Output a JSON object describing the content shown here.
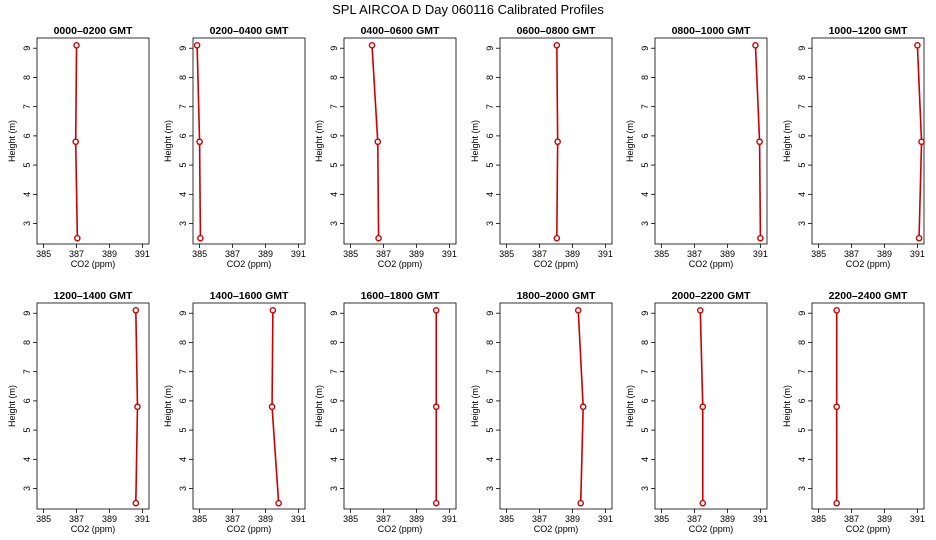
{
  "title": "SPL AIRCOA D  Day 060116  Calibrated Profiles",
  "chart_data": {
    "type": "line",
    "xlabel": "CO2 (ppm)",
    "ylabel": "Height (m)",
    "xlim": [
      384.6,
      391.4
    ],
    "ylim": [
      2.3,
      9.35
    ],
    "xticks": [
      385,
      387,
      389,
      391
    ],
    "yticks": [
      3,
      4,
      5,
      6,
      7,
      8,
      9
    ],
    "series_color": "#cc0000",
    "panels": [
      {
        "title": "0000–0200 GMT",
        "points": [
          {
            "x": 387.0,
            "y": 9.1
          },
          {
            "x": 386.95,
            "y": 5.8
          },
          {
            "x": 387.05,
            "y": 2.5
          }
        ]
      },
      {
        "title": "0200–0400 GMT",
        "points": [
          {
            "x": 384.85,
            "y": 9.1
          },
          {
            "x": 385.0,
            "y": 5.8
          },
          {
            "x": 385.05,
            "y": 2.5
          }
        ]
      },
      {
        "title": "0400–0600 GMT",
        "points": [
          {
            "x": 386.3,
            "y": 9.1
          },
          {
            "x": 386.65,
            "y": 5.8
          },
          {
            "x": 386.7,
            "y": 2.5
          }
        ]
      },
      {
        "title": "0600–0800 GMT",
        "points": [
          {
            "x": 388.05,
            "y": 9.1
          },
          {
            "x": 388.1,
            "y": 5.8
          },
          {
            "x": 388.05,
            "y": 2.5
          }
        ]
      },
      {
        "title": "0800–1000 GMT",
        "points": [
          {
            "x": 390.7,
            "y": 9.1
          },
          {
            "x": 390.95,
            "y": 5.8
          },
          {
            "x": 391.0,
            "y": 2.5
          }
        ]
      },
      {
        "title": "1000–1200 GMT",
        "points": [
          {
            "x": 391.0,
            "y": 9.1
          },
          {
            "x": 391.25,
            "y": 5.8
          },
          {
            "x": 391.1,
            "y": 2.5
          }
        ]
      },
      {
        "title": "1200–1400 GMT",
        "points": [
          {
            "x": 390.6,
            "y": 9.1
          },
          {
            "x": 390.7,
            "y": 5.8
          },
          {
            "x": 390.6,
            "y": 2.5
          }
        ]
      },
      {
        "title": "1400–1600 GMT",
        "points": [
          {
            "x": 389.45,
            "y": 9.1
          },
          {
            "x": 389.4,
            "y": 5.8
          },
          {
            "x": 389.8,
            "y": 2.5
          }
        ]
      },
      {
        "title": "1600–1800 GMT",
        "points": [
          {
            "x": 390.2,
            "y": 9.1
          },
          {
            "x": 390.2,
            "y": 5.8
          },
          {
            "x": 390.2,
            "y": 2.5
          }
        ]
      },
      {
        "title": "1800–2000 GMT",
        "points": [
          {
            "x": 389.35,
            "y": 9.1
          },
          {
            "x": 389.65,
            "y": 5.8
          },
          {
            "x": 389.5,
            "y": 2.5
          }
        ]
      },
      {
        "title": "2000–2200 GMT",
        "points": [
          {
            "x": 387.35,
            "y": 9.1
          },
          {
            "x": 387.5,
            "y": 5.8
          },
          {
            "x": 387.5,
            "y": 2.5
          }
        ]
      },
      {
        "title": "2200–2400 GMT",
        "points": [
          {
            "x": 386.1,
            "y": 9.1
          },
          {
            "x": 386.1,
            "y": 5.8
          },
          {
            "x": 386.1,
            "y": 2.5
          }
        ]
      }
    ]
  }
}
